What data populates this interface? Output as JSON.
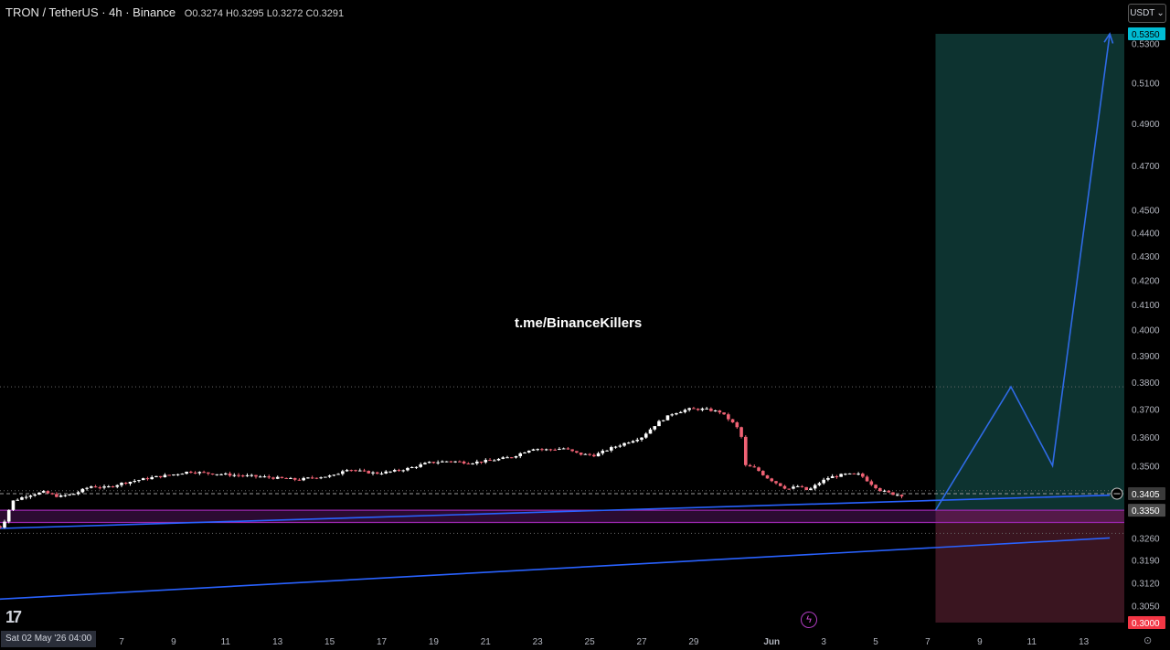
{
  "header": {
    "symbol": "TRON / TetherUS · 4h · Binance",
    "ohlc": "O0.3274 H0.3295 L0.3272 C0.3291"
  },
  "currency_selector": {
    "label": "USDT",
    "icon": "chevron-down-icon"
  },
  "watermark": "t.me/BinanceKillers",
  "date_badge": "Sat 02 May '26  04:00",
  "tradingview_logo": "17",
  "colors": {
    "background": "#000000",
    "candle_up": "#ffffff",
    "candle_down": "#f06274",
    "trendline": "#2962ff",
    "zone": "#9c27b0",
    "profit_area": "#0d3330",
    "loss_area": "#3a1520",
    "path": "#2f6be6",
    "target_label": "#00bcd4",
    "stop_label": "#f23645"
  },
  "chart_data": {
    "type": "candlestick",
    "title": "TRON / TetherUS · 4h · Binance",
    "y_scale": "log",
    "y_tick_labels": [
      "0.5300",
      "0.5100",
      "0.4900",
      "0.4700",
      "0.4500",
      "0.4400",
      "0.4300",
      "0.4200",
      "0.4100",
      "0.4000",
      "0.3900",
      "0.3800",
      "0.3700",
      "0.3600",
      "0.3500",
      "0.3405",
      "0.3350",
      "0.3260",
      "0.3190",
      "0.3120",
      "0.3050",
      "0.3000"
    ],
    "x_tick_labels": [
      {
        "label": "7",
        "day": 7
      },
      {
        "label": "9",
        "day": 9
      },
      {
        "label": "11",
        "day": 11
      },
      {
        "label": "13",
        "day": 13
      },
      {
        "label": "15",
        "day": 15
      },
      {
        "label": "17",
        "day": 17
      },
      {
        "label": "19",
        "day": 19
      },
      {
        "label": "21",
        "day": 21
      },
      {
        "label": "23",
        "day": 23
      },
      {
        "label": "25",
        "day": 25
      },
      {
        "label": "27",
        "day": 27
      },
      {
        "label": "29",
        "day": 29
      },
      {
        "label": "Jun",
        "day": 32
      },
      {
        "label": "3",
        "day": 34
      },
      {
        "label": "5",
        "day": 36
      },
      {
        "label": "7",
        "day": 38
      },
      {
        "label": "9",
        "day": 40
      },
      {
        "label": "11",
        "day": 42
      },
      {
        "label": "13",
        "day": 44
      }
    ],
    "price_path": [
      [
        2.0,
        0.33
      ],
      [
        2.4,
        0.3295
      ],
      [
        2.8,
        0.338
      ],
      [
        3.4,
        0.34
      ],
      [
        4.0,
        0.341
      ],
      [
        4.6,
        0.3395
      ],
      [
        5.2,
        0.3405
      ],
      [
        5.8,
        0.343
      ],
      [
        6.4,
        0.3425
      ],
      [
        7.0,
        0.344
      ],
      [
        7.6,
        0.345
      ],
      [
        8.2,
        0.346
      ],
      [
        9.0,
        0.347
      ],
      [
        9.6,
        0.348
      ],
      [
        10.2,
        0.3475
      ],
      [
        11.0,
        0.347
      ],
      [
        11.6,
        0.3466
      ],
      [
        12.4,
        0.3462
      ],
      [
        13.2,
        0.3456
      ],
      [
        13.8,
        0.3452
      ],
      [
        14.4,
        0.346
      ],
      [
        15.2,
        0.3466
      ],
      [
        15.6,
        0.349
      ],
      [
        16.2,
        0.348
      ],
      [
        16.8,
        0.3474
      ],
      [
        17.4,
        0.348
      ],
      [
        18.0,
        0.349
      ],
      [
        18.8,
        0.351
      ],
      [
        19.6,
        0.3516
      ],
      [
        20.4,
        0.351
      ],
      [
        21.2,
        0.3518
      ],
      [
        22.0,
        0.353
      ],
      [
        22.8,
        0.356
      ],
      [
        23.4,
        0.3555
      ],
      [
        24.0,
        0.356
      ],
      [
        24.6,
        0.354
      ],
      [
        25.2,
        0.3536
      ],
      [
        25.8,
        0.356
      ],
      [
        26.4,
        0.358
      ],
      [
        27.0,
        0.36
      ],
      [
        27.6,
        0.365
      ],
      [
        28.2,
        0.3685
      ],
      [
        28.8,
        0.37
      ],
      [
        29.4,
        0.37
      ],
      [
        30.0,
        0.369
      ],
      [
        30.4,
        0.366
      ],
      [
        30.8,
        0.362
      ],
      [
        31.0,
        0.35
      ],
      [
        31.4,
        0.349
      ],
      [
        31.8,
        0.346
      ],
      [
        32.2,
        0.344
      ],
      [
        32.6,
        0.342
      ],
      [
        33.0,
        0.343
      ],
      [
        33.4,
        0.3415
      ],
      [
        33.8,
        0.344
      ],
      [
        34.2,
        0.346
      ],
      [
        34.8,
        0.347
      ],
      [
        35.4,
        0.347
      ],
      [
        35.8,
        0.344
      ],
      [
        36.2,
        0.3415
      ],
      [
        36.6,
        0.3405
      ],
      [
        37.0,
        0.34
      ]
    ],
    "horizontal_levels": [
      {
        "name": "resistance",
        "value": 0.3782,
        "style": "dotted"
      },
      {
        "name": "current",
        "value": 0.3405,
        "style": "dashed"
      },
      {
        "name": "level-a",
        "value": 0.3415,
        "style": "dotted"
      },
      {
        "name": "zone-top",
        "value": 0.335,
        "style": "solid"
      },
      {
        "name": "zone-bottom",
        "value": 0.331,
        "style": "solid"
      },
      {
        "name": "level-b",
        "value": 0.3275,
        "style": "dotted"
      }
    ],
    "trendlines": [
      {
        "name": "upper",
        "from": [
          0,
          0.3285
        ],
        "to": [
          45,
          0.34
        ]
      },
      {
        "name": "lower",
        "from": [
          0,
          0.306
        ],
        "to": [
          45,
          0.326
        ]
      }
    ],
    "position": {
      "type": "long",
      "entry": 0.335,
      "target": 0.535,
      "stop": 0.3,
      "start_day": 38.3,
      "end_day": 45.0
    },
    "projection_path": [
      [
        38.3,
        0.335
      ],
      [
        41.2,
        0.3782
      ],
      [
        42.8,
        0.35
      ],
      [
        45.0,
        0.535
      ]
    ],
    "price_labels": [
      {
        "label": "0.5350",
        "value": 0.535,
        "kind": "target"
      },
      {
        "label": "0.3405",
        "value": 0.3405,
        "kind": "current"
      },
      {
        "label": "0.3350",
        "value": 0.335,
        "kind": "entry"
      },
      {
        "label": "0.3000",
        "value": 0.3,
        "kind": "stop"
      }
    ]
  }
}
